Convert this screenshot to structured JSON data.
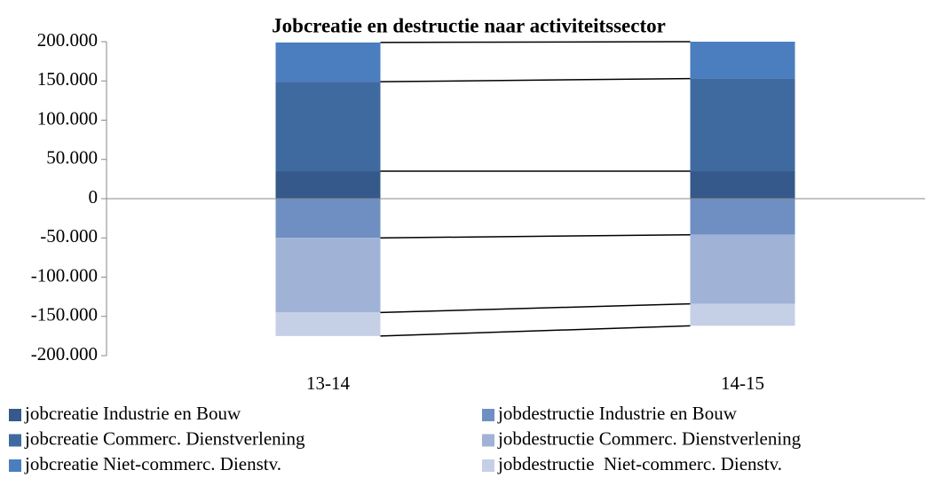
{
  "chart_data": {
    "type": "stacked_bar",
    "title": "Jobcreatie en destructie naar activiteitssector",
    "categories": [
      "13-14",
      "14-15"
    ],
    "series": [
      {
        "name": "jobcreatie Industrie en Bouw",
        "color": "#35598a",
        "values": [
          35000,
          35000
        ]
      },
      {
        "name": "jobcreatie Commerc. Dienstverlening",
        "color": "#3f6aa0",
        "values": [
          114000,
          118000
        ]
      },
      {
        "name": "jobcreatie Niet-commerc. Dienstv.",
        "color": "#4a7ebf",
        "values": [
          50000,
          47000
        ]
      },
      {
        "name": "jobdestructie Industrie en Bouw",
        "color": "#6f8fc3",
        "values": [
          -50000,
          -46000
        ]
      },
      {
        "name": "jobdestructie Commerc. Dienstverlening",
        "color": "#a0b3d6",
        "values": [
          -95000,
          -88000
        ]
      },
      {
        "name": "jobdestructie  Niet-commerc. Dienstv.",
        "color": "#c5d0e6",
        "values": [
          -30000,
          -28000
        ]
      }
    ],
    "ylim": [
      -200000,
      200000
    ],
    "yticks": [
      {
        "value": 200000,
        "label": "200.000"
      },
      {
        "value": 150000,
        "label": "150.000"
      },
      {
        "value": 100000,
        "label": "100.000"
      },
      {
        "value": 50000,
        "label": "50.000"
      },
      0,
      {
        "value": -50000,
        "label": "-50.000"
      },
      {
        "value": -100000,
        "label": "-100.000"
      },
      {
        "value": -150000,
        "label": "-150.000"
      },
      {
        "value": -200000,
        "label": "-200.000"
      }
    ],
    "grid": false,
    "legend": "bottom"
  }
}
